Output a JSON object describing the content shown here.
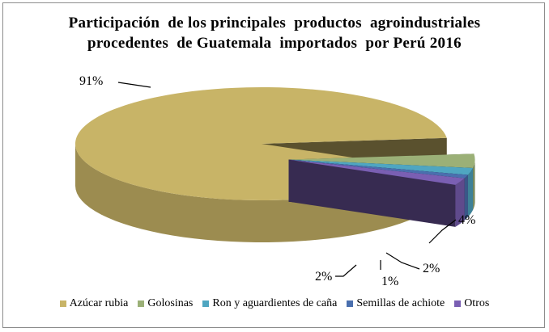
{
  "chart_data": {
    "type": "pie",
    "title_lines": [
      "Participación  de los principales  productos  agroindustriales",
      "procedentes  de Guatemala  importados  por Perú 2016"
    ],
    "categories": [
      "Azúcar rubia",
      "Golosinas",
      "Ron y aguardientes de caña",
      "Semillas de achiote",
      "Otros"
    ],
    "values": [
      91,
      4,
      2,
      1,
      2
    ],
    "data_labels": [
      "91%",
      "4%",
      "2%",
      "1%",
      "2%"
    ],
    "colors": [
      "#c8b467",
      "#9bb077",
      "#4fa6c1",
      "#4a6fae",
      "#7a5fb3"
    ],
    "style": "3d-exploded",
    "legend_position": "bottom"
  }
}
